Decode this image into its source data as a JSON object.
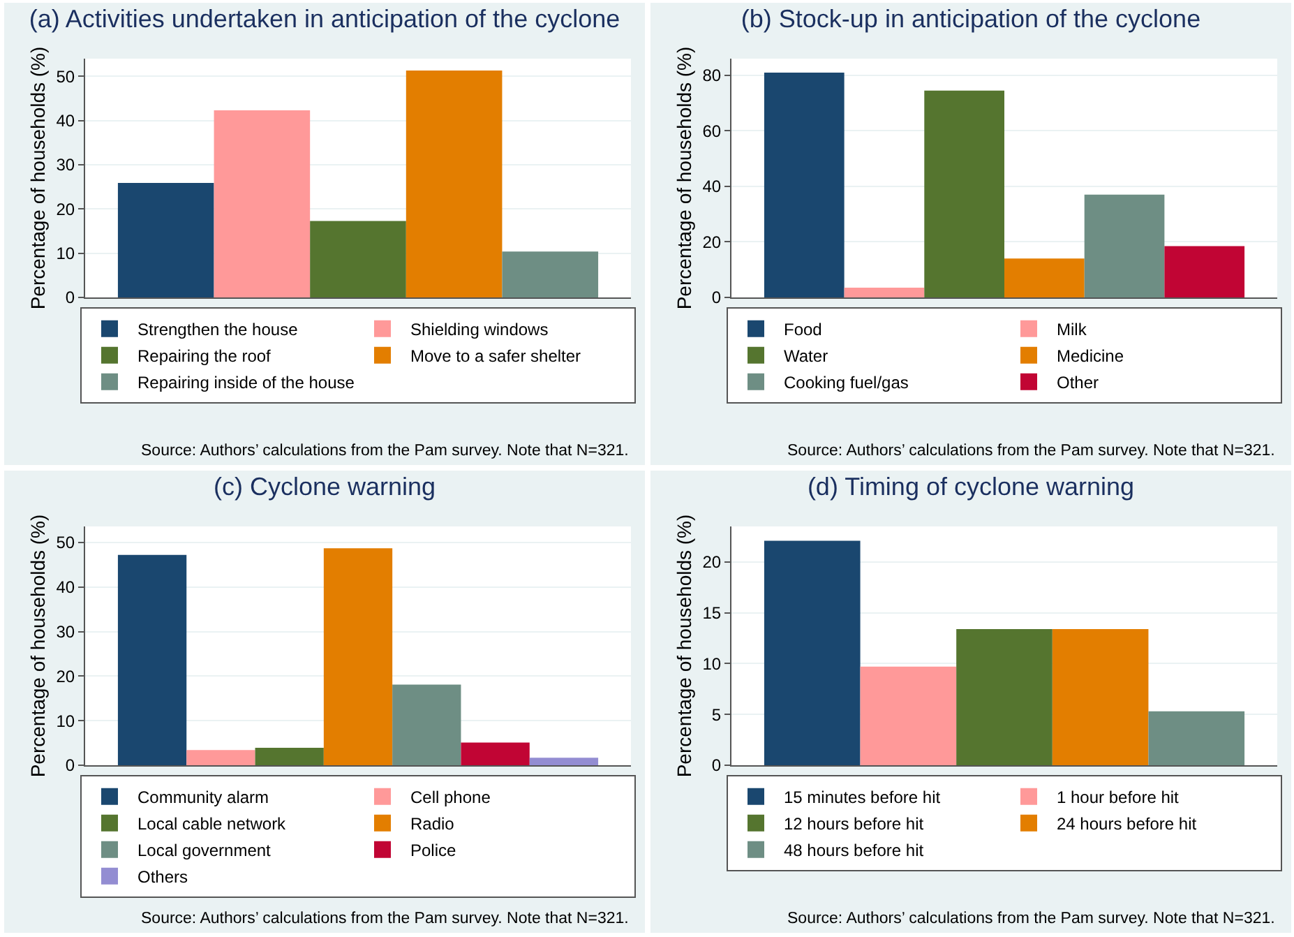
{
  "chart_data": [
    {
      "type": "bar",
      "title": "(a) Activities undertaken in anticipation of the cyclone",
      "ylabel": "Percentage of households (%)",
      "categories": [
        null
      ],
      "ylim": [
        0,
        54
      ],
      "yticks": [
        0,
        10,
        20,
        30,
        40,
        50
      ],
      "grid": "y",
      "legend": "bottom",
      "tick_labels": "y",
      "series": [
        {
          "name": "Strengthen the house",
          "color": "#1a476f",
          "values": [
            25.9
          ]
        },
        {
          "name": "Shielding windows",
          "color": "#ff9999",
          "values": [
            42.3
          ]
        },
        {
          "name": "Repairing the roof",
          "color": "#55752f",
          "values": [
            17.3
          ]
        },
        {
          "name": "Move to a safer shelter",
          "color": "#e37e00",
          "values": [
            51.3
          ]
        },
        {
          "name": "Repairing inside of the house",
          "color": "#6e8e84",
          "values": [
            10.4
          ]
        }
      ],
      "annotations": [
        "Source: Authors’ calculations from the Pam survey. Note that N=321."
      ]
    },
    {
      "type": "bar",
      "title": "(b) Stock-up in anticipation of the cyclone",
      "ylabel": "Percentage of households (%)",
      "categories": [
        null
      ],
      "ylim": [
        0,
        86
      ],
      "yticks": [
        0,
        20,
        40,
        60,
        80
      ],
      "grid": "y",
      "legend": "bottom",
      "tick_labels": "y",
      "series": [
        {
          "name": "Food",
          "color": "#1a476f",
          "values": [
            81
          ]
        },
        {
          "name": "Milk",
          "color": "#ff9999",
          "values": [
            3.5
          ]
        },
        {
          "name": "Water",
          "color": "#55752f",
          "values": [
            74.5
          ]
        },
        {
          "name": "Medicine",
          "color": "#e37e00",
          "values": [
            14
          ]
        },
        {
          "name": "Cooking fuel/gas",
          "color": "#6e8e84",
          "values": [
            37
          ]
        },
        {
          "name": "Other",
          "color": "#c10534",
          "values": [
            18.5
          ]
        }
      ],
      "annotations": [
        "Source: Authors’ calculations from the Pam survey. Note that N=321."
      ]
    },
    {
      "type": "bar",
      "title": "(c) Cyclone warning",
      "ylabel": "Percentage of households (%)",
      "categories": [
        null
      ],
      "ylim": [
        0,
        53.6
      ],
      "yticks": [
        0,
        10,
        20,
        30,
        40,
        50
      ],
      "grid": "y",
      "legend": "bottom",
      "tick_labels": "y",
      "series": [
        {
          "name": "Community alarm",
          "color": "#1a476f",
          "values": [
            47.2
          ]
        },
        {
          "name": "Cell phone",
          "color": "#ff9999",
          "values": [
            3.4
          ]
        },
        {
          "name": "Local cable network",
          "color": "#55752f",
          "values": [
            3.9
          ]
        },
        {
          "name": "Radio",
          "color": "#e37e00",
          "values": [
            48.7
          ]
        },
        {
          "name": "Local government",
          "color": "#6e8e84",
          "values": [
            18.1
          ]
        },
        {
          "name": "Police",
          "color": "#c10534",
          "values": [
            5.1
          ]
        },
        {
          "name": "Others",
          "color": "#938dd2",
          "values": [
            1.7
          ]
        }
      ],
      "annotations": [
        "Source: Authors’ calculations from the Pam survey. Note that N=321."
      ]
    },
    {
      "type": "bar",
      "title": "(d) Timing of cyclone warning",
      "ylabel": "Percentage of households (%)",
      "categories": [
        null
      ],
      "ylim": [
        0,
        23.5
      ],
      "yticks": [
        0,
        5,
        10,
        15,
        20
      ],
      "grid": "y",
      "legend": "bottom",
      "tick_labels": "y",
      "series": [
        {
          "name": "15 minutes before hit",
          "color": "#1a476f",
          "values": [
            22.1
          ]
        },
        {
          "name": "1 hour before hit",
          "color": "#ff9999",
          "values": [
            9.7
          ]
        },
        {
          "name": "12 hours before hit",
          "color": "#55752f",
          "values": [
            13.4
          ]
        },
        {
          "name": "24 hours before hit",
          "color": "#e37e00",
          "values": [
            13.4
          ]
        },
        {
          "name": "48 hours before hit",
          "color": "#6e8e84",
          "values": [
            5.3
          ]
        }
      ],
      "annotations": [
        "Source: Authors’ calculations from the Pam survey. Note that N=321."
      ]
    }
  ]
}
